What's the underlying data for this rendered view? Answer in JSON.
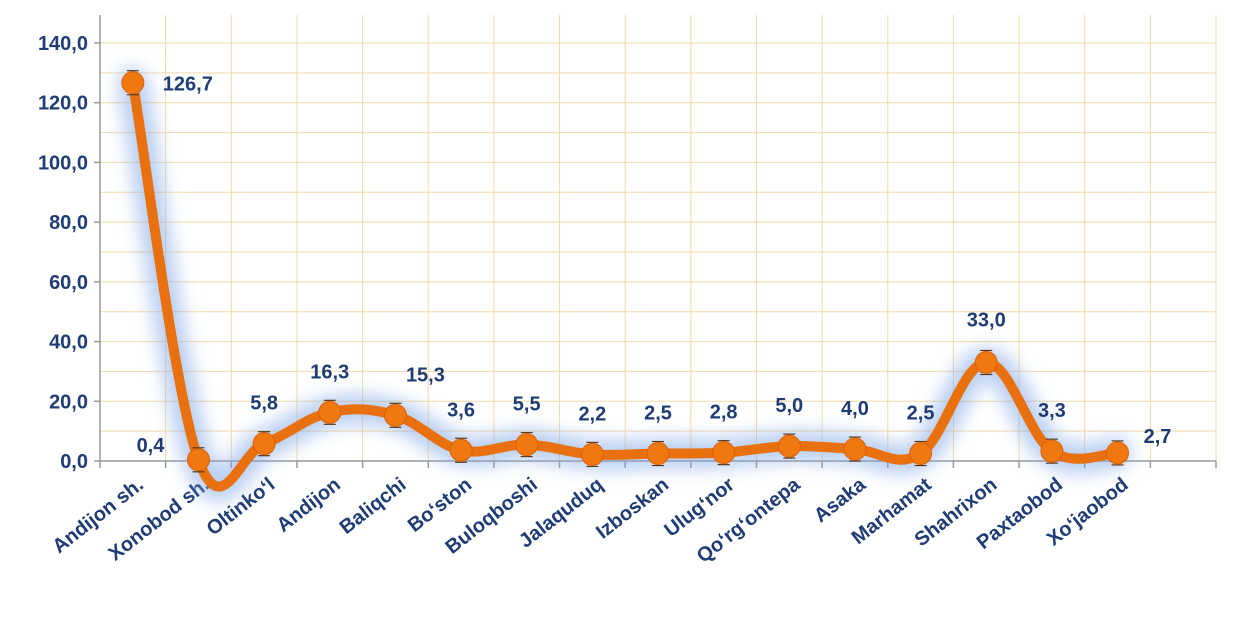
{
  "chart_data": {
    "type": "line",
    "categories": [
      "Andijon sh.",
      "Xonobod sh.",
      "Oltinko‘l",
      "Andijon",
      "Baliqchi",
      "Bo‘ston",
      "Buloqboshi",
      "Jalaquduq",
      "Izboskan",
      "Ulug‘nor",
      "Qo‘rg‘ontepa",
      "Asaka",
      "Marhamat",
      "Shahrixon",
      "Paxtaobod",
      "Xo‘jaobod"
    ],
    "series": [
      {
        "values": [
          126.7,
          0.4,
          5.8,
          16.3,
          15.3,
          3.6,
          5.5,
          2.2,
          2.5,
          2.8,
          5.0,
          4.0,
          2.5,
          33.0,
          3.3,
          2.7
        ],
        "labels": [
          "126,7",
          "0,4",
          "5,8",
          "16,3",
          "15,3",
          "3,6",
          "5,5",
          "2,2",
          "2,5",
          "2,8",
          "5,0",
          "4,0",
          "2,5",
          "33,0",
          "3,3",
          "2,7"
        ]
      }
    ],
    "y_ticks": [
      0,
      20,
      40,
      60,
      80,
      100,
      120,
      140
    ],
    "y_tick_labels": [
      "0,0",
      "20,0",
      "40,0",
      "60,0",
      "80,0",
      "100,0",
      "120,0",
      "140,0"
    ],
    "ylim": [
      0,
      140
    ],
    "title": "",
    "xlabel": "",
    "ylabel": "",
    "grid": true,
    "legend": "none",
    "colors": {
      "line": "#E8700F",
      "marker": "#F0780F",
      "glow": "#7FA6E6",
      "grid": "#F3D9A8",
      "axis": "#9A9A9A",
      "label": "#1F3C74"
    }
  }
}
